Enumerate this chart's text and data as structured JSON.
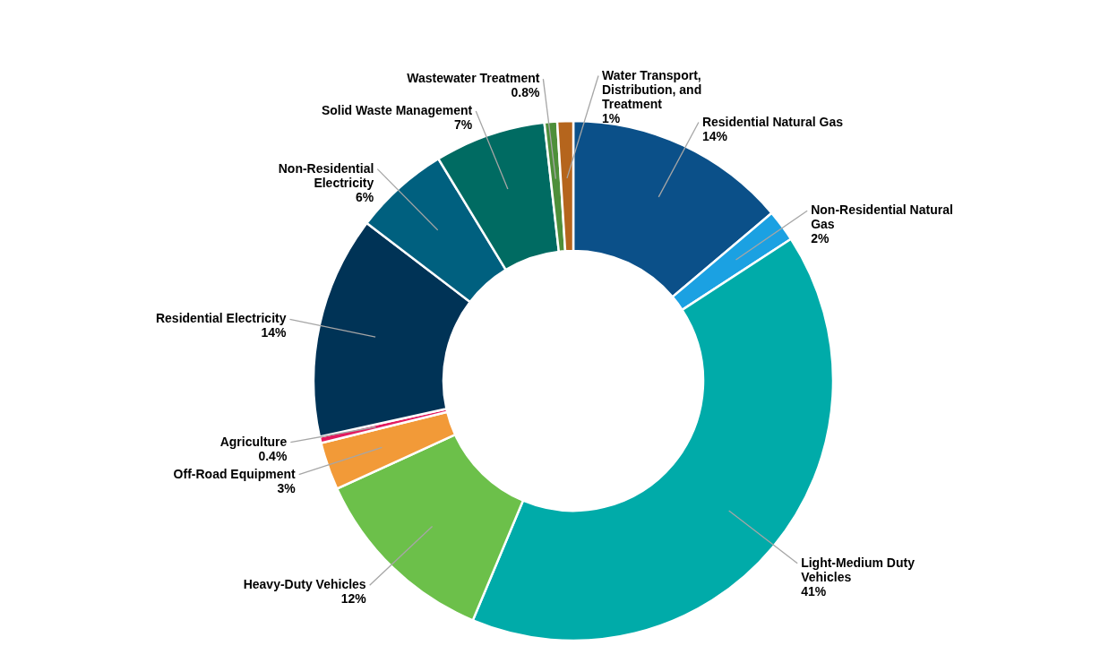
{
  "chart_data": {
    "type": "donut",
    "categories": [
      "Residential Natural Gas",
      "Non-Residential Natural Gas",
      "Light-Medium Duty Vehicles",
      "Heavy-Duty Vehicles",
      "Off-Road Equipment",
      "Agriculture",
      "Residential Electricity",
      "Non-Residential Electricity",
      "Solid Waste Management",
      "Wastewater Treatment",
      "Water Transport, Distribution, and Treatment"
    ],
    "values": [
      14,
      2,
      41,
      12,
      3,
      0.4,
      14,
      6,
      7,
      0.8,
      1
    ],
    "value_labels": [
      "14%",
      "2%",
      "41%",
      "12%",
      "3%",
      "0.4%",
      "14%",
      "6%",
      "7%",
      "0.8%",
      "1%"
    ],
    "colors": [
      "#0b5089",
      "#1ba1e2",
      "#00aba9",
      "#6cc04a",
      "#f29a38",
      "#e31b5f",
      "#003356",
      "#00607f",
      "#006b62",
      "#4e8f3a",
      "#b5651d"
    ]
  }
}
